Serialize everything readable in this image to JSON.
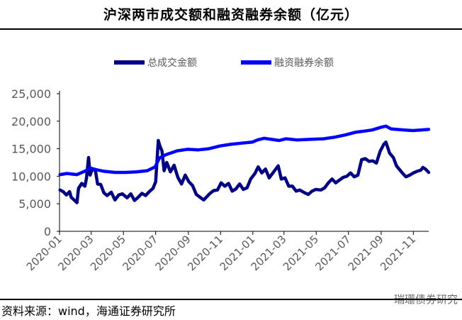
{
  "title": "沪深两市成交额和融资融券余额（亿元）",
  "source": "资料来源：wind，海通证券研究所",
  "watermark": "瑞珊债券研究",
  "colors": {
    "turnover": "#000080",
    "margin": "#0000ff",
    "axis": "#000000",
    "text": "#595959"
  },
  "chart_data": {
    "type": "line",
    "title": "沪深两市成交额和融资融券余额（亿元）",
    "ylim": [
      0,
      25000
    ],
    "yticks": [
      "0",
      "5,000",
      "10,000",
      "15,000",
      "20,000",
      "25,000"
    ],
    "yticks_values": [
      0,
      5000,
      10000,
      15000,
      20000,
      25000
    ],
    "xtick_labels": [
      "2020-01",
      "2020-03",
      "2020-05",
      "2020-07",
      "2020-09",
      "2020-11",
      "2021-01",
      "2021-03",
      "2021-05",
      "2021-07",
      "2021-09",
      "2021-11"
    ],
    "xtick_dates": [
      "2020-01-01",
      "2020-03-01",
      "2020-05-01",
      "2020-07-01",
      "2020-09-01",
      "2020-11-01",
      "2021-01-01",
      "2021-03-01",
      "2021-05-01",
      "2021-07-01",
      "2021-09-01",
      "2021-11-01"
    ],
    "x_range": [
      "2020-01-01",
      "2021-11-30"
    ],
    "legend_position": "top-center",
    "grid": false,
    "series": [
      {
        "name": "总成交金额",
        "color": "#000080",
        "points": [
          [
            "2020-01-02",
            7500
          ],
          [
            "2020-01-08",
            7200
          ],
          [
            "2020-01-14",
            6600
          ],
          [
            "2020-01-20",
            7200
          ],
          [
            "2020-01-23",
            6200
          ],
          [
            "2020-02-03",
            5200
          ],
          [
            "2020-02-06",
            7800
          ],
          [
            "2020-02-12",
            8700
          ],
          [
            "2020-02-18",
            8200
          ],
          [
            "2020-02-21",
            9600
          ],
          [
            "2020-02-25",
            13400
          ],
          [
            "2020-02-28",
            10200
          ],
          [
            "2020-03-03",
            11300
          ],
          [
            "2020-03-09",
            11000
          ],
          [
            "2020-03-13",
            8600
          ],
          [
            "2020-03-19",
            8500
          ],
          [
            "2020-03-25",
            7000
          ],
          [
            "2020-03-31",
            6500
          ],
          [
            "2020-04-08",
            7100
          ],
          [
            "2020-04-15",
            5700
          ],
          [
            "2020-04-22",
            6600
          ],
          [
            "2020-04-29",
            6800
          ],
          [
            "2020-05-08",
            6100
          ],
          [
            "2020-05-15",
            6800
          ],
          [
            "2020-05-22",
            5600
          ],
          [
            "2020-05-29",
            6200
          ],
          [
            "2020-06-05",
            6900
          ],
          [
            "2020-06-12",
            6500
          ],
          [
            "2020-06-19",
            7200
          ],
          [
            "2020-06-26",
            7800
          ],
          [
            "2020-07-01",
            9000
          ],
          [
            "2020-07-06",
            16500
          ],
          [
            "2020-07-09",
            15500
          ],
          [
            "2020-07-13",
            14600
          ],
          [
            "2020-07-17",
            11000
          ],
          [
            "2020-07-22",
            12500
          ],
          [
            "2020-07-29",
            10800
          ],
          [
            "2020-08-05",
            12000
          ],
          [
            "2020-08-12",
            9800
          ],
          [
            "2020-08-19",
            8600
          ],
          [
            "2020-08-26",
            10200
          ],
          [
            "2020-09-02",
            9000
          ],
          [
            "2020-09-09",
            8300
          ],
          [
            "2020-09-16",
            6700
          ],
          [
            "2020-09-23",
            6200
          ],
          [
            "2020-09-30",
            5700
          ],
          [
            "2020-10-12",
            6900
          ],
          [
            "2020-10-19",
            7400
          ],
          [
            "2020-10-26",
            7500
          ],
          [
            "2020-11-02",
            8800
          ],
          [
            "2020-11-09",
            8200
          ],
          [
            "2020-11-16",
            8700
          ],
          [
            "2020-11-23",
            7300
          ],
          [
            "2020-11-30",
            7700
          ],
          [
            "2020-12-07",
            8600
          ],
          [
            "2020-12-14",
            7600
          ],
          [
            "2020-12-21",
            7900
          ],
          [
            "2020-12-28",
            9500
          ],
          [
            "2021-01-05",
            10500
          ],
          [
            "2021-01-11",
            11700
          ],
          [
            "2021-01-18",
            10600
          ],
          [
            "2021-01-25",
            11300
          ],
          [
            "2021-02-01",
            9700
          ],
          [
            "2021-02-08",
            10600
          ],
          [
            "2021-02-18",
            11900
          ],
          [
            "2021-02-24",
            9500
          ],
          [
            "2021-03-03",
            9700
          ],
          [
            "2021-03-10",
            8200
          ],
          [
            "2021-03-17",
            8200
          ],
          [
            "2021-03-24",
            7300
          ],
          [
            "2021-03-31",
            7500
          ],
          [
            "2021-04-09",
            7000
          ],
          [
            "2021-04-16",
            6700
          ],
          [
            "2021-04-23",
            7300
          ],
          [
            "2021-04-30",
            7600
          ],
          [
            "2021-05-10",
            7500
          ],
          [
            "2021-05-17",
            7900
          ],
          [
            "2021-05-24",
            8800
          ],
          [
            "2021-05-31",
            9500
          ],
          [
            "2021-06-07",
            8800
          ],
          [
            "2021-06-14",
            9300
          ],
          [
            "2021-06-21",
            9800
          ],
          [
            "2021-06-28",
            10000
          ],
          [
            "2021-07-05",
            10600
          ],
          [
            "2021-07-12",
            9900
          ],
          [
            "2021-07-19",
            10200
          ],
          [
            "2021-07-26",
            13000
          ],
          [
            "2021-08-02",
            13200
          ],
          [
            "2021-08-09",
            12700
          ],
          [
            "2021-08-16",
            12800
          ],
          [
            "2021-08-23",
            12400
          ],
          [
            "2021-08-30",
            14500
          ],
          [
            "2021-09-06",
            15800
          ],
          [
            "2021-09-10",
            16200
          ],
          [
            "2021-09-17",
            14200
          ],
          [
            "2021-09-24",
            13400
          ],
          [
            "2021-09-30",
            11900
          ],
          [
            "2021-10-11",
            10600
          ],
          [
            "2021-10-18",
            9900
          ],
          [
            "2021-10-25",
            10200
          ],
          [
            "2021-11-01",
            10600
          ],
          [
            "2021-11-08",
            10900
          ],
          [
            "2021-11-15",
            11100
          ],
          [
            "2021-11-19",
            11600
          ],
          [
            "2021-11-24",
            11300
          ],
          [
            "2021-11-30",
            10700
          ]
        ]
      },
      {
        "name": "融资融券余额",
        "color": "#0000ff",
        "points": [
          [
            "2020-01-02",
            10300
          ],
          [
            "2020-01-15",
            10500
          ],
          [
            "2020-02-03",
            10300
          ],
          [
            "2020-02-20",
            11000
          ],
          [
            "2020-02-28",
            11500
          ],
          [
            "2020-03-10",
            11200
          ],
          [
            "2020-03-25",
            10900
          ],
          [
            "2020-04-15",
            10700
          ],
          [
            "2020-05-05",
            10700
          ],
          [
            "2020-05-25",
            10800
          ],
          [
            "2020-06-15",
            11000
          ],
          [
            "2020-06-30",
            11700
          ],
          [
            "2020-07-08",
            13300
          ],
          [
            "2020-07-20",
            13900
          ],
          [
            "2020-08-10",
            14600
          ],
          [
            "2020-08-31",
            14900
          ],
          [
            "2020-09-20",
            14800
          ],
          [
            "2020-10-10",
            15000
          ],
          [
            "2020-10-31",
            15500
          ],
          [
            "2020-11-20",
            15800
          ],
          [
            "2020-12-10",
            16000
          ],
          [
            "2020-12-31",
            16200
          ],
          [
            "2021-01-10",
            16600
          ],
          [
            "2021-01-22",
            16900
          ],
          [
            "2021-02-05",
            16700
          ],
          [
            "2021-02-20",
            16500
          ],
          [
            "2021-03-05",
            16800
          ],
          [
            "2021-03-25",
            16600
          ],
          [
            "2021-04-20",
            16700
          ],
          [
            "2021-05-15",
            16800
          ],
          [
            "2021-06-05",
            17100
          ],
          [
            "2021-06-25",
            17500
          ],
          [
            "2021-07-15",
            18000
          ],
          [
            "2021-07-31",
            18200
          ],
          [
            "2021-08-15",
            18400
          ],
          [
            "2021-09-01",
            18900
          ],
          [
            "2021-09-10",
            19100
          ],
          [
            "2021-09-20",
            18600
          ],
          [
            "2021-10-01",
            18500
          ],
          [
            "2021-10-15",
            18400
          ],
          [
            "2021-10-31",
            18300
          ],
          [
            "2021-11-15",
            18400
          ],
          [
            "2021-11-30",
            18500
          ]
        ]
      }
    ]
  }
}
